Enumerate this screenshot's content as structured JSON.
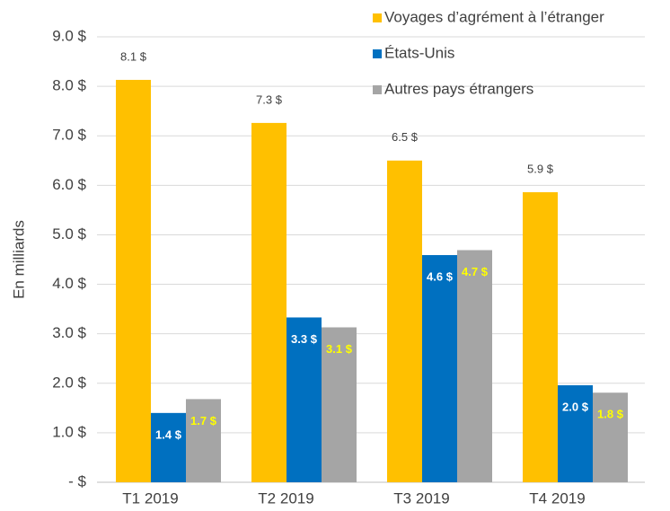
{
  "chart_data": {
    "type": "bar",
    "y_axis_label": "En milliards",
    "categories": [
      "T1 2019",
      "T2 2019",
      "T3 2019",
      "T4 2019"
    ],
    "series": [
      {
        "name": "Voyages d’agrément à l’étranger",
        "color": "#ffc000",
        "label_color": "#404040",
        "label_position": "outside",
        "values": [
          8.13,
          7.26,
          6.5,
          5.86
        ],
        "value_labels": [
          "8.1 $",
          "7.3 $",
          "6.5 $",
          "5.9 $"
        ]
      },
      {
        "name": "États-Unis",
        "color": "#0070c0",
        "label_color": "#ffffff",
        "label_position": "inside",
        "values": [
          1.4,
          3.33,
          4.59,
          1.96
        ],
        "value_labels": [
          "1.4 $",
          "3.3 $",
          "4.6 $",
          "2.0 $"
        ]
      },
      {
        "name": "Autres pays étrangers",
        "color": "#a5a5a5",
        "label_color": "#ffff00",
        "label_position": "inside",
        "values": [
          1.68,
          3.13,
          4.69,
          1.81
        ],
        "value_labels": [
          "1.7 $",
          "3.1 $",
          "4.7 $",
          "1.8 $"
        ]
      }
    ],
    "ylim": [
      0,
      9
    ],
    "yticks": [
      {
        "value": 0,
        "label": "-   $"
      },
      {
        "value": 1,
        "label": "1.0 $"
      },
      {
        "value": 2,
        "label": "2.0 $"
      },
      {
        "value": 3,
        "label": "3.0 $"
      },
      {
        "value": 4,
        "label": "4.0 $"
      },
      {
        "value": 5,
        "label": "5.0 $"
      },
      {
        "value": 6,
        "label": "6.0 $"
      },
      {
        "value": 7,
        "label": "7.0 $"
      },
      {
        "value": 8,
        "label": "8.0 $"
      },
      {
        "value": 9,
        "label": "9.0 $"
      }
    ],
    "grid": true,
    "legend": "top-right"
  }
}
